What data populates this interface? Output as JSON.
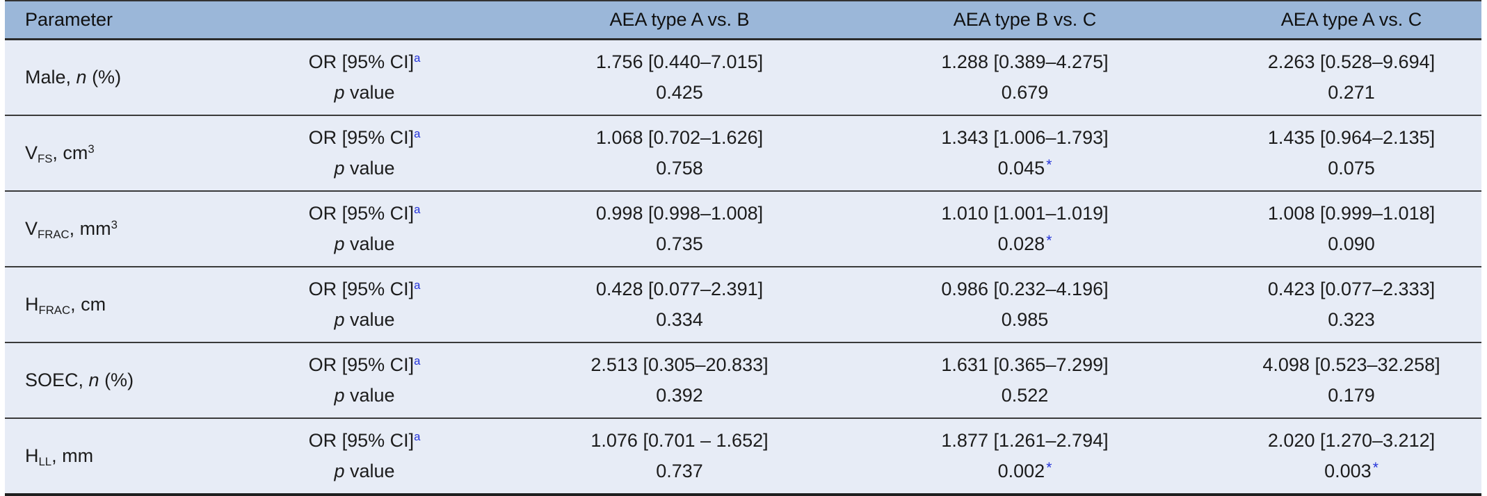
{
  "colors": {
    "header_bg": "#9bb7d9",
    "body_bg": "#e7ecf6",
    "rule_dark": "#333333",
    "text": "#1c1c1c",
    "accent_blue": "#2433d9"
  },
  "table": {
    "header": {
      "parameter_label": "Parameter",
      "stat_label": "",
      "comparison_columns": [
        "AEA type A vs. B",
        "AEA type B vs. C",
        "AEA type A vs. C"
      ]
    },
    "stat_labels": {
      "or_ci": [
        {
          "t": "text",
          "v": "OR [95% CI]"
        },
        {
          "t": "sup_blue",
          "v": "a"
        }
      ],
      "p_value": [
        {
          "t": "i",
          "v": "p"
        },
        {
          "t": "text",
          "v": " value"
        }
      ]
    },
    "significance_marker": "*",
    "rows": [
      {
        "parameter": [
          {
            "t": "text",
            "v": "Male, "
          },
          {
            "t": "i",
            "v": "n"
          },
          {
            "t": "text",
            "v": " (%)"
          }
        ],
        "or_ci": [
          "1.756 [0.440–7.015]",
          "1.288 [0.389–4.275]",
          "2.263 [0.528–9.694]"
        ],
        "p_values": [
          "0.425",
          "0.679",
          "0.271"
        ],
        "significant": [
          false,
          false,
          false
        ]
      },
      {
        "parameter": [
          {
            "t": "text",
            "v": "V"
          },
          {
            "t": "sub",
            "v": "FS"
          },
          {
            "t": "text",
            "v": ", cm"
          },
          {
            "t": "sup",
            "v": "3"
          }
        ],
        "or_ci": [
          "1.068 [0.702–1.626]",
          "1.343 [1.006–1.793]",
          "1.435 [0.964–2.135]"
        ],
        "p_values": [
          "0.758",
          "0.045",
          "0.075"
        ],
        "significant": [
          false,
          true,
          false
        ]
      },
      {
        "parameter": [
          {
            "t": "text",
            "v": "V"
          },
          {
            "t": "sub",
            "v": "FRAC"
          },
          {
            "t": "text",
            "v": ", mm"
          },
          {
            "t": "sup",
            "v": "3"
          }
        ],
        "or_ci": [
          "0.998 [0.998–1.008]",
          "1.010 [1.001–1.019]",
          "1.008 [0.999–1.018]"
        ],
        "p_values": [
          "0.735",
          "0.028",
          "0.090"
        ],
        "significant": [
          false,
          true,
          false
        ]
      },
      {
        "parameter": [
          {
            "t": "text",
            "v": "H"
          },
          {
            "t": "sub",
            "v": "FRAC"
          },
          {
            "t": "text",
            "v": ", cm"
          }
        ],
        "or_ci": [
          "0.428 [0.077–2.391]",
          "0.986 [0.232–4.196]",
          "0.423 [0.077–2.333]"
        ],
        "p_values": [
          "0.334",
          "0.985",
          "0.323"
        ],
        "significant": [
          false,
          false,
          false
        ]
      },
      {
        "parameter": [
          {
            "t": "text",
            "v": "SOEC, "
          },
          {
            "t": "i",
            "v": "n"
          },
          {
            "t": "text",
            "v": " (%)"
          }
        ],
        "or_ci": [
          "2.513 [0.305–20.833]",
          "1.631 [0.365–7.299]",
          "4.098 [0.523–32.258]"
        ],
        "p_values": [
          "0.392",
          "0.522",
          "0.179"
        ],
        "significant": [
          false,
          false,
          false
        ]
      },
      {
        "parameter": [
          {
            "t": "text",
            "v": "H"
          },
          {
            "t": "sub",
            "v": "LL"
          },
          {
            "t": "text",
            "v": ", mm"
          }
        ],
        "or_ci": [
          "1.076 [0.701 – 1.652]",
          "1.877 [1.261–2.794]",
          "2.020 [1.270–3.212]"
        ],
        "p_values": [
          "0.737",
          "0.002",
          "0.003"
        ],
        "significant": [
          false,
          true,
          true
        ]
      }
    ]
  }
}
